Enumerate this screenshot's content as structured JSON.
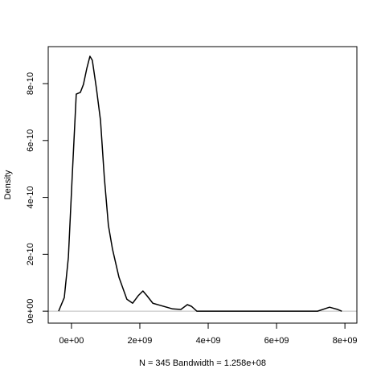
{
  "chart_data": {
    "type": "line",
    "xlabel": "N = 345   Bandwidth = 1.258e+08",
    "ylabel": "Density",
    "x": [
      -376000000.0,
      -210000000.0,
      -90000000.0,
      20000000.0,
      140000000.0,
      260000000.0,
      350000000.0,
      450000000.0,
      540000000.0,
      610000000.0,
      730000000.0,
      850000000.0,
      960000000.0,
      1080000000.0,
      1200000000.0,
      1390000000.0,
      1620000000.0,
      1790000000.0,
      1950000000.0,
      2090000000.0,
      2210000000.0,
      2380000000.0,
      2610000000.0,
      2960000000.0,
      3200000000.0,
      3390000000.0,
      3510000000.0,
      3670000000.0,
      7200000000.0,
      7550000000.0,
      7790000000.0,
      7910000000.0
    ],
    "series": [
      {
        "color": "#000000",
        "values": [
          0,
          4.8e-11,
          1.9e-10,
          4.7e-10,
          7.63e-10,
          7.69e-10,
          7.97e-10,
          8.54e-10,
          8.96e-10,
          8.82e-10,
          7.83e-10,
          6.7e-10,
          4.72e-10,
          3.02e-10,
          2.18e-10,
          1.19e-10,
          4.2e-11,
          2.8e-11,
          5.4e-11,
          7.1e-11,
          5.4e-11,
          2.8e-11,
          2e-11,
          8e-12,
          6e-12,
          2.3e-11,
          1.7e-11,
          0,
          0,
          1.4e-11,
          6e-12,
          0
        ]
      }
    ],
    "xlim": [
      -680000000.0,
      8350000000.0
    ],
    "ylim": [
      -4.2e-11,
      9.3e-10
    ],
    "xticks": [
      {
        "value": 0,
        "label": "0e+00"
      },
      {
        "value": 2000000000.0,
        "label": "2e+09"
      },
      {
        "value": 4000000000.0,
        "label": "4e+09"
      },
      {
        "value": 6000000000.0,
        "label": "6e+09"
      },
      {
        "value": 8000000000.0,
        "label": "8e+09"
      }
    ],
    "yticks": [
      {
        "value": 0,
        "label": "0e+00"
      },
      {
        "value": 2e-10,
        "label": "2e-10"
      },
      {
        "value": 4e-10,
        "label": "4e-10"
      },
      {
        "value": 6e-10,
        "label": "6e-10"
      },
      {
        "value": 8e-10,
        "label": "8e-10"
      }
    ],
    "hline": 0,
    "hline_color": "#bebebe"
  }
}
